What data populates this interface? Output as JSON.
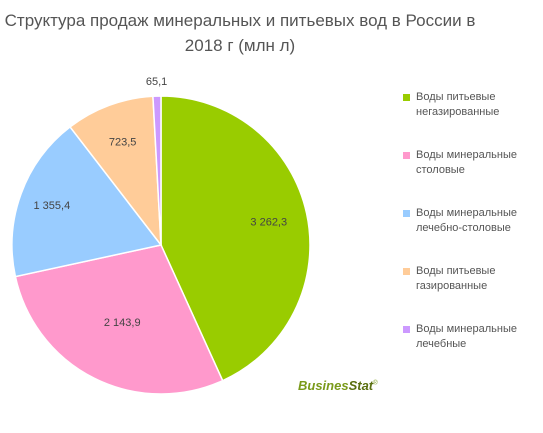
{
  "title": "Структура продаж минеральных и питьевых вод в России в 2018 г (млн л)",
  "logo": {
    "part1": "Busines",
    "part2": "Stat",
    "mark": "®"
  },
  "chart_data": {
    "type": "pie",
    "title": "Структура продаж минеральных и питьевых вод в России в 2018 г (млн л)",
    "legend_position": "right",
    "start_angle_deg": 0,
    "direction": "clockwise",
    "slices": [
      {
        "label": "Воды питьевые негазированные",
        "value": 3262.3,
        "value_label": "3 262,3",
        "color": "#99cc00"
      },
      {
        "label": "Воды минеральные столовые",
        "value": 2143.9,
        "value_label": "2 143,9",
        "color": "#ff99cc"
      },
      {
        "label": "Воды минеральные лечебно-столовые",
        "value": 1355.4,
        "value_label": "1 355,4",
        "color": "#99ccff"
      },
      {
        "label": "Воды питьевые газированные",
        "value": 723.5,
        "value_label": "723,5",
        "color": "#ffcc99"
      },
      {
        "label": "Воды минеральные лечебные",
        "value": 65.1,
        "value_label": "65,1",
        "color": "#cc99ff"
      }
    ]
  }
}
